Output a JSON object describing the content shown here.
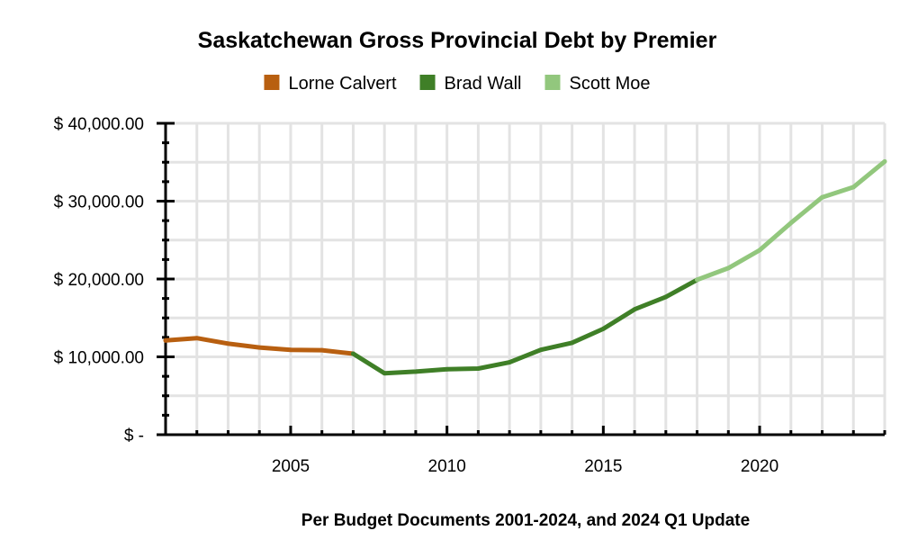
{
  "chart_data": {
    "type": "line",
    "title": "Saskatchewan Gross Provincial Debt by Premier",
    "xlabel": "Per Budget Documents 2001-2024, and 2024 Q1 Update",
    "ylabel": "",
    "xlim": [
      2001,
      2024
    ],
    "ylim": [
      0,
      40000
    ],
    "x_ticks": [
      2005,
      2010,
      2015,
      2020
    ],
    "y_ticks": [
      {
        "value": 0,
        "label": "$ -"
      },
      {
        "value": 10000,
        "label": "$ 10,000.00"
      },
      {
        "value": 20000,
        "label": "$ 20,000.00"
      },
      {
        "value": 30000,
        "label": "$ 30,000.00"
      },
      {
        "value": 40000,
        "label": "$ 40,000.00"
      }
    ],
    "grid": true,
    "legend_position": "top",
    "series": [
      {
        "name": "Lorne Calvert",
        "color": "#b85f10",
        "x": [
          2001,
          2002,
          2003,
          2004,
          2005,
          2006,
          2007
        ],
        "values": [
          12100,
          12400,
          11700,
          11200,
          10900,
          10850,
          10400
        ]
      },
      {
        "name": "Brad Wall",
        "color": "#3f7f27",
        "x": [
          2007,
          2008,
          2009,
          2010,
          2011,
          2012,
          2013,
          2014,
          2015,
          2016,
          2017,
          2018
        ],
        "values": [
          10400,
          7900,
          8100,
          8400,
          8500,
          9300,
          10900,
          11800,
          13600,
          16100,
          17700,
          19900
        ]
      },
      {
        "name": "Scott Moe",
        "color": "#92c77d",
        "x": [
          2018,
          2019,
          2020,
          2021,
          2022,
          2023,
          2024
        ],
        "values": [
          19900,
          21400,
          23700,
          27200,
          30500,
          31800,
          35100
        ]
      }
    ]
  }
}
